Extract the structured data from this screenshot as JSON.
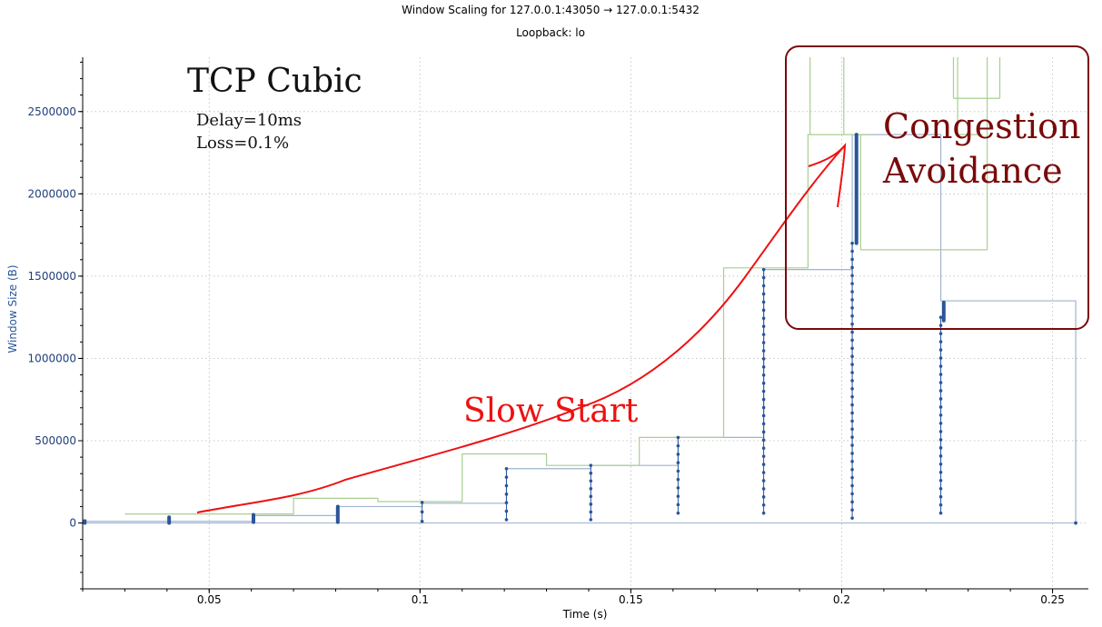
{
  "window": {
    "title": "Window Scaling for 127.0.0.1:43050 → 127.0.0.1:5432",
    "subtitle": "Loopback: lo"
  },
  "colors": {
    "segments": "#2a5599",
    "throughput": "#a9cf8f",
    "window_line": "#9fb3d1",
    "annotation_red": "#ee1111",
    "annotation_box": "#7a0a0a",
    "ylabel": "#2a5599"
  },
  "annotations": {
    "algorithm": "TCP  Cubic",
    "delay": "Delay=10ms",
    "loss": "Loss=0.1%",
    "slow_start": "Slow Start",
    "congestion_line1": "Congestion",
    "congestion_line2": "Avoidance"
  },
  "chart_data": {
    "type": "scatter",
    "title": "Window Scaling for 127.0.0.1:43050 → 127.0.0.1:5432",
    "subtitle": "Loopback: lo",
    "xlabel": "Time (s)",
    "ylabel": "Window Size (B)",
    "xlim": [
      0.02,
      0.2585
    ],
    "ylim": [
      -400000,
      2830000
    ],
    "xticks": [
      0.05,
      0.1,
      0.15,
      0.2,
      0.25
    ],
    "xtick_labels": [
      "0.05",
      "0.1",
      "0.15",
      "0.2",
      "0.25"
    ],
    "yticks": [
      0,
      500000,
      1000000,
      1500000,
      2000000,
      2500000
    ],
    "ytick_labels": [
      "0",
      "500000",
      "1000000",
      "1500000",
      "2000000",
      "2500000"
    ],
    "grid": true,
    "series": [
      {
        "kind": "points",
        "clusters": [
          {
            "x": 0.0205,
            "ymin": 0,
            "ymax": 12000,
            "thick": true
          },
          {
            "x": 0.0405,
            "ymin": 0,
            "ymax": 35000,
            "thick": true
          },
          {
            "x": 0.0605,
            "ymin": 5000,
            "ymax": 50000,
            "thick": true
          },
          {
            "x": 0.0805,
            "ymin": 5000,
            "ymax": 100000,
            "thick": true
          },
          {
            "x": 0.1005,
            "ymin": 10000,
            "ymax": 125000,
            "thick": false
          },
          {
            "x": 0.1205,
            "ymin": 20000,
            "ymax": 330000,
            "thick": false
          },
          {
            "x": 0.1405,
            "ymin": 20000,
            "ymax": 350000,
            "thick": false
          },
          {
            "x": 0.1612,
            "ymin": 60000,
            "ymax": 520000,
            "thick": false
          },
          {
            "x": 0.1815,
            "ymin": 60000,
            "ymax": 1540000,
            "thick": false
          },
          {
            "x": 0.2025,
            "ymin": 30000,
            "ymax": 1700000,
            "thick": false
          },
          {
            "x": 0.2035,
            "ymin": 1700000,
            "ymax": 2360000,
            "thick": true
          },
          {
            "x": 0.2235,
            "ymin": 60000,
            "ymax": 1250000,
            "thick": false
          },
          {
            "x": 0.2242,
            "ymin": 1230000,
            "ymax": 1340000,
            "thick": true
          },
          {
            "x": 0.2555,
            "ymin": 0,
            "ymax": 0,
            "thick": false
          }
        ]
      },
      {
        "kind": "step",
        "points": [
          [
            0.0205,
            10000
          ],
          [
            0.0605,
            45000
          ],
          [
            0.0805,
            100000
          ],
          [
            0.1005,
            120000
          ],
          [
            0.1205,
            330000
          ],
          [
            0.1405,
            350000
          ],
          [
            0.1612,
            520000
          ],
          [
            0.1815,
            1540000
          ],
          [
            0.2025,
            2360000
          ],
          [
            0.2235,
            1350000
          ],
          [
            0.2555,
            1350000
          ]
        ],
        "drop_to_zero_at": 0.2555
      },
      {
        "kind": "step",
        "points": [
          [
            0.03,
            55000
          ],
          [
            0.05,
            55000
          ],
          [
            0.07,
            150000
          ],
          [
            0.09,
            130000
          ],
          [
            0.11,
            420000
          ],
          [
            0.13,
            350000
          ],
          [
            0.152,
            520000
          ],
          [
            0.172,
            1550000
          ],
          [
            0.192,
            2360000
          ],
          [
            0.2065,
            2360000
          ]
        ],
        "extras": [
          {
            "from": [
              0.1925,
              2830000
            ],
            "to": [
              0.1925,
              2360000
            ]
          },
          {
            "from": [
              0.2275,
              2830000
            ],
            "to": [
              0.2275,
              2360000
            ]
          },
          {
            "from": [
              0.2275,
              2360000
            ],
            "to": [
              0.2335,
              2360000
            ]
          },
          {
            "from": [
              0.2005,
              2360000
            ],
            "to": [
              0.2005,
              2830000
            ]
          },
          {
            "from": [
              0.2045,
              2360000
            ],
            "to": [
              0.2045,
              1660000
            ]
          },
          {
            "from": [
              0.2045,
              1660000
            ],
            "to": [
              0.2345,
              1660000
            ]
          },
          {
            "from": [
              0.2345,
              1660000
            ],
            "to": [
              0.2345,
              2830000
            ]
          },
          {
            "from": [
              0.2345,
              2830000
            ],
            "to": [
              0.2345,
              2830000
            ]
          },
          {
            "from": [
              0.2265,
              2830000
            ],
            "to": [
              0.2265,
              2580000
            ]
          },
          {
            "from": [
              0.2265,
              2580000
            ],
            "to": [
              0.2375,
              2580000
            ]
          },
          {
            "from": [
              0.2375,
              2580000
            ],
            "to": [
              0.2375,
              2830000
            ]
          }
        ]
      }
    ]
  }
}
